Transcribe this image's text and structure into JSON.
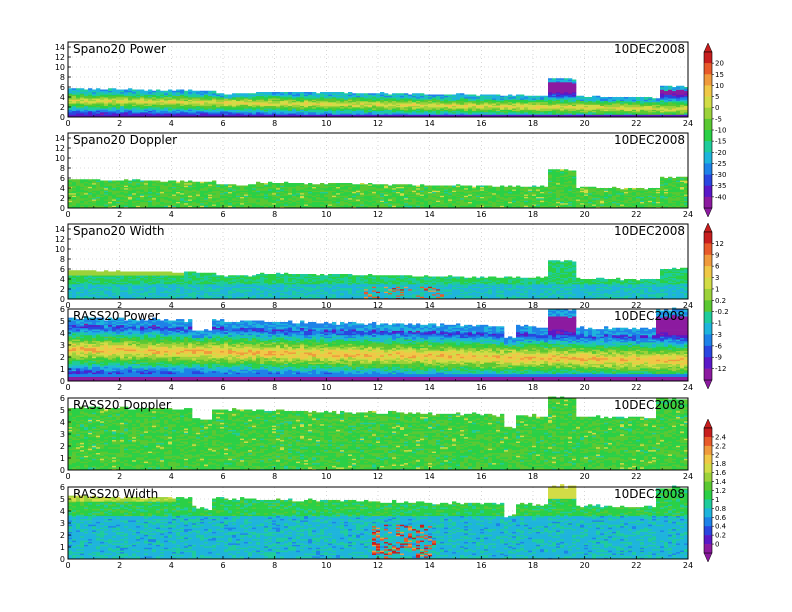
{
  "colors": {
    "palette": [
      "#8c1aa0",
      "#5a18c8",
      "#2a46e0",
      "#1e82e8",
      "#1eb4dc",
      "#1ecc9c",
      "#2ad046",
      "#5ac832",
      "#9cd23a",
      "#d2dc46",
      "#f0c846",
      "#f09a3c",
      "#e85a2a",
      "#c81e1e"
    ],
    "axis": "#000000",
    "grid": "#bbbbbb"
  },
  "chart_data": [
    {
      "type": "heatmap",
      "title": "Spano20 Power",
      "date": "10DEC2008",
      "x_range": [
        0,
        24
      ],
      "x_ticks": [
        "0",
        "2",
        "4",
        "6",
        "8",
        "10",
        "12",
        "14",
        "16",
        "18",
        "20",
        "22",
        "24"
      ],
      "y_range": [
        0,
        15
      ],
      "y_ticks": [
        "0",
        "2",
        "4",
        "6",
        "8",
        "10",
        "12",
        "14"
      ],
      "grid": true,
      "colorbar_group": 0
    },
    {
      "type": "heatmap",
      "title": "Spano20 Doppler",
      "date": "10DEC2008",
      "x_range": [
        0,
        24
      ],
      "x_ticks": [
        "0",
        "2",
        "4",
        "6",
        "8",
        "10",
        "12",
        "14",
        "16",
        "18",
        "20",
        "22",
        "24"
      ],
      "y_range": [
        0,
        15
      ],
      "y_ticks": [
        "0",
        "2",
        "4",
        "6",
        "8",
        "10",
        "12",
        "14"
      ],
      "grid": true,
      "colorbar_group": 0
    },
    {
      "type": "heatmap",
      "title": "Spano20 Width",
      "date": "10DEC2008",
      "x_range": [
        0,
        24
      ],
      "x_ticks": [
        "0",
        "2",
        "4",
        "6",
        "8",
        "10",
        "12",
        "14",
        "16",
        "18",
        "20",
        "22",
        "24"
      ],
      "y_range": [
        0,
        15
      ],
      "y_ticks": [
        "0",
        "2",
        "4",
        "6",
        "8",
        "10",
        "12",
        "14"
      ],
      "grid": true,
      "colorbar_group": 1
    },
    {
      "type": "heatmap",
      "title": "RASS20 Power",
      "date": "10DEC2008",
      "x_range": [
        0,
        24
      ],
      "x_ticks": [
        "0",
        "2",
        "4",
        "6",
        "8",
        "10",
        "12",
        "14",
        "16",
        "18",
        "20",
        "22",
        "24"
      ],
      "y_range": [
        0,
        6
      ],
      "y_ticks": [
        "0",
        "1",
        "2",
        "3",
        "4",
        "5",
        "6"
      ],
      "grid": true,
      "colorbar_group": 1
    },
    {
      "type": "heatmap",
      "title": "RASS20 Doppler",
      "date": "10DEC2008",
      "x_range": [
        0,
        24
      ],
      "x_ticks": [
        "0",
        "2",
        "4",
        "6",
        "8",
        "10",
        "12",
        "14",
        "16",
        "18",
        "20",
        "22",
        "24"
      ],
      "y_range": [
        0,
        6
      ],
      "y_ticks": [
        "0",
        "1",
        "2",
        "3",
        "4",
        "5",
        "6"
      ],
      "grid": true,
      "colorbar_group": 2
    },
    {
      "type": "heatmap",
      "title": "RASS20 Width",
      "date": "10DEC2008",
      "x_range": [
        0,
        24
      ],
      "x_ticks": [
        "0",
        "2",
        "4",
        "6",
        "8",
        "10",
        "12",
        "14",
        "16",
        "18",
        "20",
        "22",
        "24"
      ],
      "y_range": [
        0,
        6
      ],
      "y_ticks": [
        "0",
        "1",
        "2",
        "3",
        "4",
        "5",
        "6"
      ],
      "grid": true,
      "colorbar_group": 2
    }
  ],
  "colorbars": [
    {
      "labels": [
        "20",
        "15",
        "10",
        "5",
        "0",
        "-5",
        "-10",
        "-15",
        "-20",
        "-25",
        "-30",
        "-35",
        "-40"
      ]
    },
    {
      "labels": [
        "12",
        "9",
        "6",
        "3",
        "1",
        "0.2",
        "-0.2",
        "-1",
        "-3",
        "-6",
        "-9",
        "-12"
      ]
    },
    {
      "labels": [
        "2.4",
        "2.2",
        "2",
        "1.8",
        "1.6",
        "1.4",
        "1.2",
        "1",
        "0.8",
        "0.6",
        "0.4",
        "0.2",
        "0"
      ]
    }
  ]
}
